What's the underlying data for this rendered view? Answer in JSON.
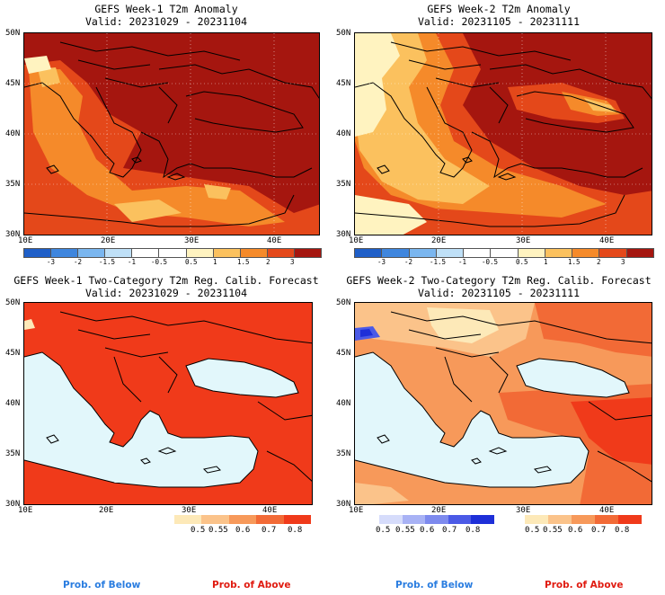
{
  "panels": {
    "p1": {
      "title": "GEFS Week-1 T2m Anomaly",
      "valid": "Valid: 20231029 - 20231104"
    },
    "p2": {
      "title": "GEFS Week-2 T2m Anomaly",
      "valid": "Valid: 20231105 - 20231111"
    },
    "p3": {
      "title": "GEFS Week-1 Two-Category T2m Reg. Calib. Forecast",
      "valid": "Valid: 20231029 - 20231104"
    },
    "p4": {
      "title": "GEFS Week-2 Two-Category T2m Reg. Calib. Forecast",
      "valid": "Valid: 20231105 - 20231111"
    }
  },
  "axes": {
    "lat_labels": [
      "50N",
      "45N",
      "40N",
      "35N",
      "30N"
    ],
    "lon_labels": [
      "10E",
      "20E",
      "30E",
      "40E"
    ]
  },
  "anomaly_colorbar": {
    "labels": [
      "-3",
      "-2",
      "-1.5",
      "-1",
      "-0.5",
      "0.5",
      "1",
      "1.5",
      "2",
      "3"
    ],
    "colors": [
      "#1f5fc8",
      "#3f86de",
      "#7ab6ef",
      "#bfe0f7",
      "#ffffff",
      "#fff3c0",
      "#fbc15e",
      "#f58a2a",
      "#e4481a",
      "#a5160f"
    ]
  },
  "prob_colorbar": {
    "labels": [
      "0.5",
      "0.55",
      "0.6",
      "0.7",
      "0.8"
    ],
    "above_colors": [
      "#fde9b8",
      "#fbc38a",
      "#f7995a",
      "#f26a36",
      "#f03a1a"
    ],
    "below_colors": [
      "#d6dcfb",
      "#a8b2f5",
      "#7d8aee",
      "#4b5ae6",
      "#1e2fd8"
    ]
  },
  "legend": {
    "below": "Prob. of Below",
    "above": "Prob. of Above"
  },
  "colors": {
    "below_text": "#2a7de0",
    "above_text": "#e01b10",
    "sea_blue": "#e2f7fb"
  }
}
